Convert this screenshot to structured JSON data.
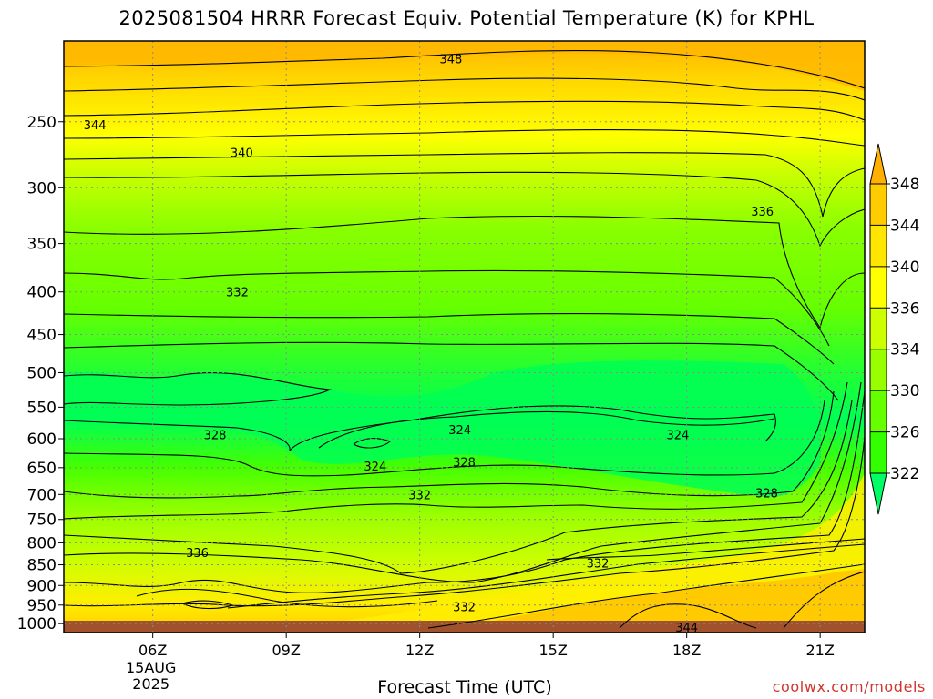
{
  "title": "2025081504 HRRR Forecast Equiv. Potential Temperature (K) for KPHL",
  "xlabel": "Forecast Time (UTC)",
  "credit": "coolwx.com/models",
  "chart_data": {
    "type": "contour",
    "title": "2025081504 HRRR Forecast Equiv. Potential Temperature (K) for KPHL",
    "xlabel": "Forecast Time (UTC)",
    "ylabel": "",
    "x_axis": {
      "unit": "hour UTC",
      "range": [
        4.0,
        22.0
      ],
      "ticks": [
        {
          "value": 6,
          "label": "06Z",
          "sublabels": [
            "15AUG",
            "2025"
          ]
        },
        {
          "value": 9,
          "label": "09Z"
        },
        {
          "value": 12,
          "label": "12Z"
        },
        {
          "value": 15,
          "label": "15Z"
        },
        {
          "value": 18,
          "label": "18Z"
        },
        {
          "value": 21,
          "label": "21Z"
        }
      ]
    },
    "y_axis": {
      "unit": "hPa",
      "scale": "log",
      "reversed": true,
      "range": [
        1025,
        200
      ],
      "ticks": [
        250,
        300,
        350,
        400,
        450,
        500,
        550,
        600,
        650,
        700,
        750,
        800,
        850,
        900,
        950,
        1000
      ]
    },
    "grid": true,
    "colorbar": {
      "position": "right",
      "levels": [
        322,
        326,
        330,
        334,
        336,
        340,
        344,
        348
      ],
      "labels": [
        "322",
        "326",
        "330",
        "334",
        "336",
        "340",
        "344",
        "348"
      ],
      "colors": [
        "#00ff66",
        "#00ff33",
        "#33ff00",
        "#66ff00",
        "#99ff00",
        "#ccff00",
        "#ffff00",
        "#ffe600",
        "#ffcc00",
        "#ffb000"
      ]
    },
    "ground_color": "#a0522d",
    "contour_labels": [
      {
        "value": "348",
        "x": 12.7,
        "p": 210
      },
      {
        "value": "344",
        "x": 4.7,
        "p": 252
      },
      {
        "value": "340",
        "x": 8.0,
        "p": 272
      },
      {
        "value": "336",
        "x": 19.7,
        "p": 320
      },
      {
        "value": "332",
        "x": 7.9,
        "p": 400
      },
      {
        "value": "328",
        "x": 7.4,
        "p": 593
      },
      {
        "value": "324",
        "x": 12.9,
        "p": 585
      },
      {
        "value": "324",
        "x": 17.8,
        "p": 593
      },
      {
        "value": "324",
        "x": 11.0,
        "p": 647
      },
      {
        "value": "328",
        "x": 13.0,
        "p": 640
      },
      {
        "value": "332",
        "x": 12.0,
        "p": 700
      },
      {
        "value": "328",
        "x": 19.8,
        "p": 697
      },
      {
        "value": "336",
        "x": 7.0,
        "p": 822
      },
      {
        "value": "332",
        "x": 16.0,
        "p": 846
      },
      {
        "value": "332",
        "x": 13.0,
        "p": 954
      },
      {
        "value": "344",
        "x": 18.0,
        "p": 1010
      }
    ]
  }
}
